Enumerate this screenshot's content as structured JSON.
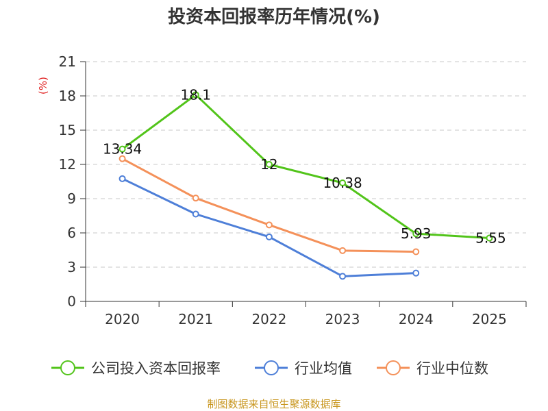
{
  "chart_data": {
    "type": "line",
    "title": "投资本回报率历年情况(%)",
    "ylabel": "(%)",
    "xlabel": "",
    "categories": [
      "2020",
      "2021",
      "2022",
      "2023",
      "2024",
      "2025"
    ],
    "ylim": [
      0,
      21
    ],
    "yticks": [
      0,
      3,
      6,
      9,
      12,
      15,
      18,
      21
    ],
    "grid": true,
    "legend_position": "bottom",
    "series": [
      {
        "name": "公司投入资本回报率",
        "color": "#52c41a",
        "values": [
          13.34,
          18.1,
          12,
          10.38,
          5.93,
          5.55
        ],
        "labels": [
          "13.34",
          "18.1",
          "12",
          "10.38",
          "5.93",
          "5.55"
        ]
      },
      {
        "name": "行业均值",
        "color": "#4e7fd8",
        "values": [
          10.75,
          7.65,
          5.65,
          2.2,
          2.48,
          null
        ]
      },
      {
        "name": "行业中位数",
        "color": "#f4915a",
        "values": [
          12.5,
          9.05,
          6.7,
          4.45,
          4.35,
          null
        ]
      }
    ],
    "source": "制图数据来自恒生聚源数据库"
  }
}
